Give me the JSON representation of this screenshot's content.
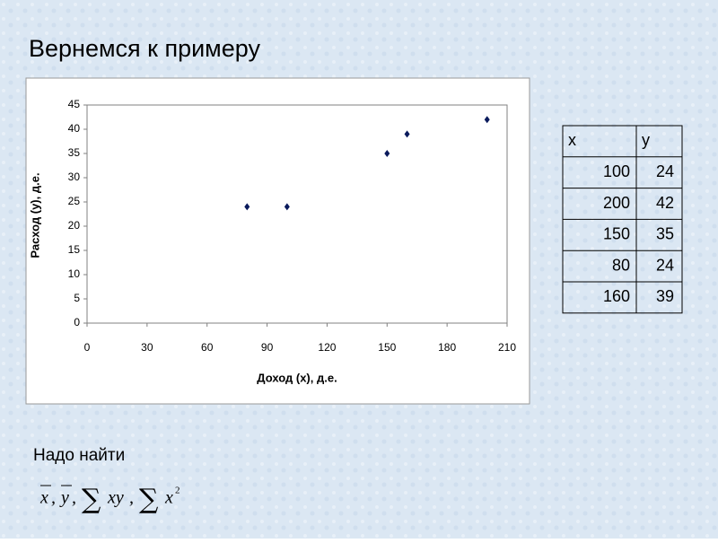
{
  "slide_title": "Вернемся к примеру",
  "chart_data": {
    "type": "scatter",
    "x": [
      80,
      100,
      150,
      160,
      200
    ],
    "series": [
      {
        "color": "#0a1a5c",
        "values": [
          24,
          24,
          35,
          39,
          42
        ]
      }
    ],
    "xlabel": "Доход (x), д.е.",
    "ylabel": "Расход (у), д.е.",
    "xlim": [
      0,
      210
    ],
    "xticks": [
      0,
      30,
      60,
      90,
      120,
      150,
      180,
      210
    ],
    "ylim": [
      0,
      45
    ],
    "yticks": [
      0,
      5,
      10,
      15,
      20,
      25,
      30,
      35,
      40,
      45
    ]
  },
  "table": {
    "header": [
      "x",
      "y"
    ],
    "rows": [
      [
        "100",
        "24"
      ],
      [
        "200",
        "42"
      ],
      [
        "150",
        "35"
      ],
      [
        "80",
        "24"
      ],
      [
        "160",
        "39"
      ]
    ]
  },
  "note": "Надо найти",
  "formula": {
    "mean_x": "x",
    "mean_y": "y",
    "sep": ",",
    "sum": "∑",
    "term1": "xy",
    "term2": "x",
    "power": "2"
  }
}
